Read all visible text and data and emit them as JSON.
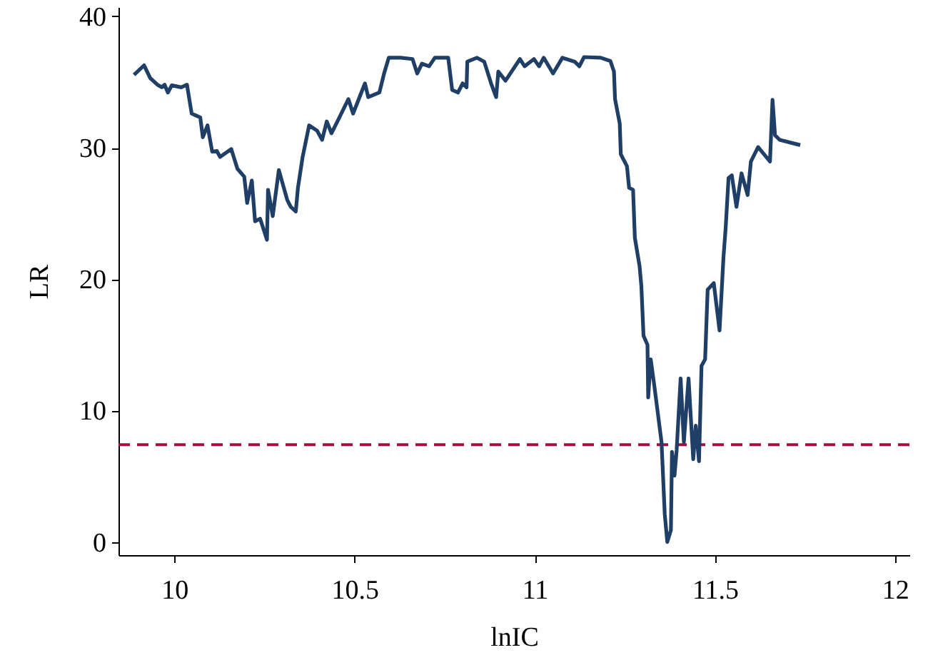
{
  "chart_data": {
    "type": "line",
    "xlabel": "lnIC",
    "ylabel": "LR",
    "x": [
      9.888,
      9.916,
      9.933,
      9.953,
      9.965,
      9.973,
      9.982,
      9.993,
      10.019,
      10.035,
      10.048,
      10.072,
      10.079,
      10.092,
      10.105,
      10.118,
      10.127,
      10.158,
      10.175,
      10.194,
      10.202,
      10.215,
      10.224,
      10.238,
      10.257,
      10.26,
      10.273,
      10.29,
      10.313,
      10.323,
      10.337,
      10.343,
      10.356,
      10.374,
      10.396,
      10.41,
      10.423,
      10.436,
      10.456,
      10.483,
      10.496,
      10.529,
      10.538,
      10.569,
      10.582,
      10.595,
      10.628,
      10.661,
      10.674,
      10.687,
      10.707,
      10.723,
      10.76,
      10.771,
      10.787,
      10.8,
      10.811,
      10.813,
      10.84,
      10.86,
      10.879,
      10.893,
      10.899,
      10.919,
      10.959,
      10.972,
      10.998,
      11.012,
      11.025,
      11.051,
      11.077,
      11.111,
      11.124,
      11.137,
      11.183,
      11.21,
      11.22,
      11.223,
      11.236,
      11.239,
      11.256,
      11.262,
      11.273,
      11.278,
      11.291,
      11.296,
      11.302,
      11.313,
      11.315,
      11.322,
      11.331,
      11.352,
      11.361,
      11.368,
      11.378,
      11.381,
      11.388,
      11.394,
      11.405,
      11.414,
      11.427,
      11.44,
      11.447,
      11.456,
      11.463,
      11.473,
      11.48,
      11.497,
      11.513,
      11.524,
      11.53,
      11.538,
      11.547,
      11.56,
      11.574,
      11.591,
      11.6,
      11.62,
      11.653,
      11.66,
      11.667,
      11.68,
      11.737
    ],
    "series": [
      {
        "color": "#1f3f66",
        "values": [
          35.55,
          36.27,
          35.3,
          34.8,
          34.6,
          34.8,
          34.2,
          34.75,
          34.6,
          34.8,
          32.6,
          32.3,
          30.8,
          31.7,
          29.7,
          29.75,
          29.3,
          29.9,
          28.4,
          27.8,
          25.8,
          27.5,
          24.4,
          24.6,
          23.0,
          26.8,
          24.8,
          28.3,
          26.05,
          25.5,
          25.15,
          26.95,
          29.3,
          31.7,
          31.3,
          30.6,
          32.0,
          31.1,
          32.2,
          33.7,
          32.6,
          34.9,
          33.85,
          34.2,
          35.65,
          36.85,
          36.85,
          36.75,
          35.65,
          36.4,
          36.2,
          36.85,
          36.85,
          34.4,
          34.2,
          34.9,
          34.6,
          36.55,
          36.85,
          36.55,
          34.9,
          33.85,
          35.8,
          35.1,
          36.75,
          36.2,
          36.75,
          36.2,
          36.85,
          35.65,
          36.85,
          36.55,
          36.2,
          36.9,
          36.85,
          36.6,
          35.8,
          33.7,
          31.85,
          29.5,
          28.6,
          26.95,
          26.8,
          23.15,
          21.0,
          19.5,
          15.7,
          15.0,
          11.0,
          13.9,
          12.1,
          7.6,
          2.1,
          0.0,
          0.9,
          6.85,
          5.05,
          7.0,
          12.45,
          7.6,
          12.45,
          6.3,
          8.85,
          6.15,
          13.4,
          13.9,
          19.2,
          19.7,
          16.1,
          21.7,
          23.9,
          27.7,
          27.9,
          25.5,
          28.05,
          26.4,
          28.95,
          30.05,
          28.95,
          33.65,
          30.95,
          30.6,
          30.2
        ]
      }
    ],
    "xlim": [
      9.845,
      12.04
    ],
    "xticks": [
      10,
      10.5,
      11,
      11.5,
      12
    ],
    "ylim": [
      -1,
      40.7
    ],
    "yticks": [
      0,
      10,
      20,
      30,
      40
    ],
    "ref_lines": [
      {
        "axis": "y",
        "value": 7.4,
        "color": "#a50f3c",
        "line_style": "dashed"
      }
    ],
    "grid": false,
    "marker": "none",
    "line_style": "solid"
  }
}
